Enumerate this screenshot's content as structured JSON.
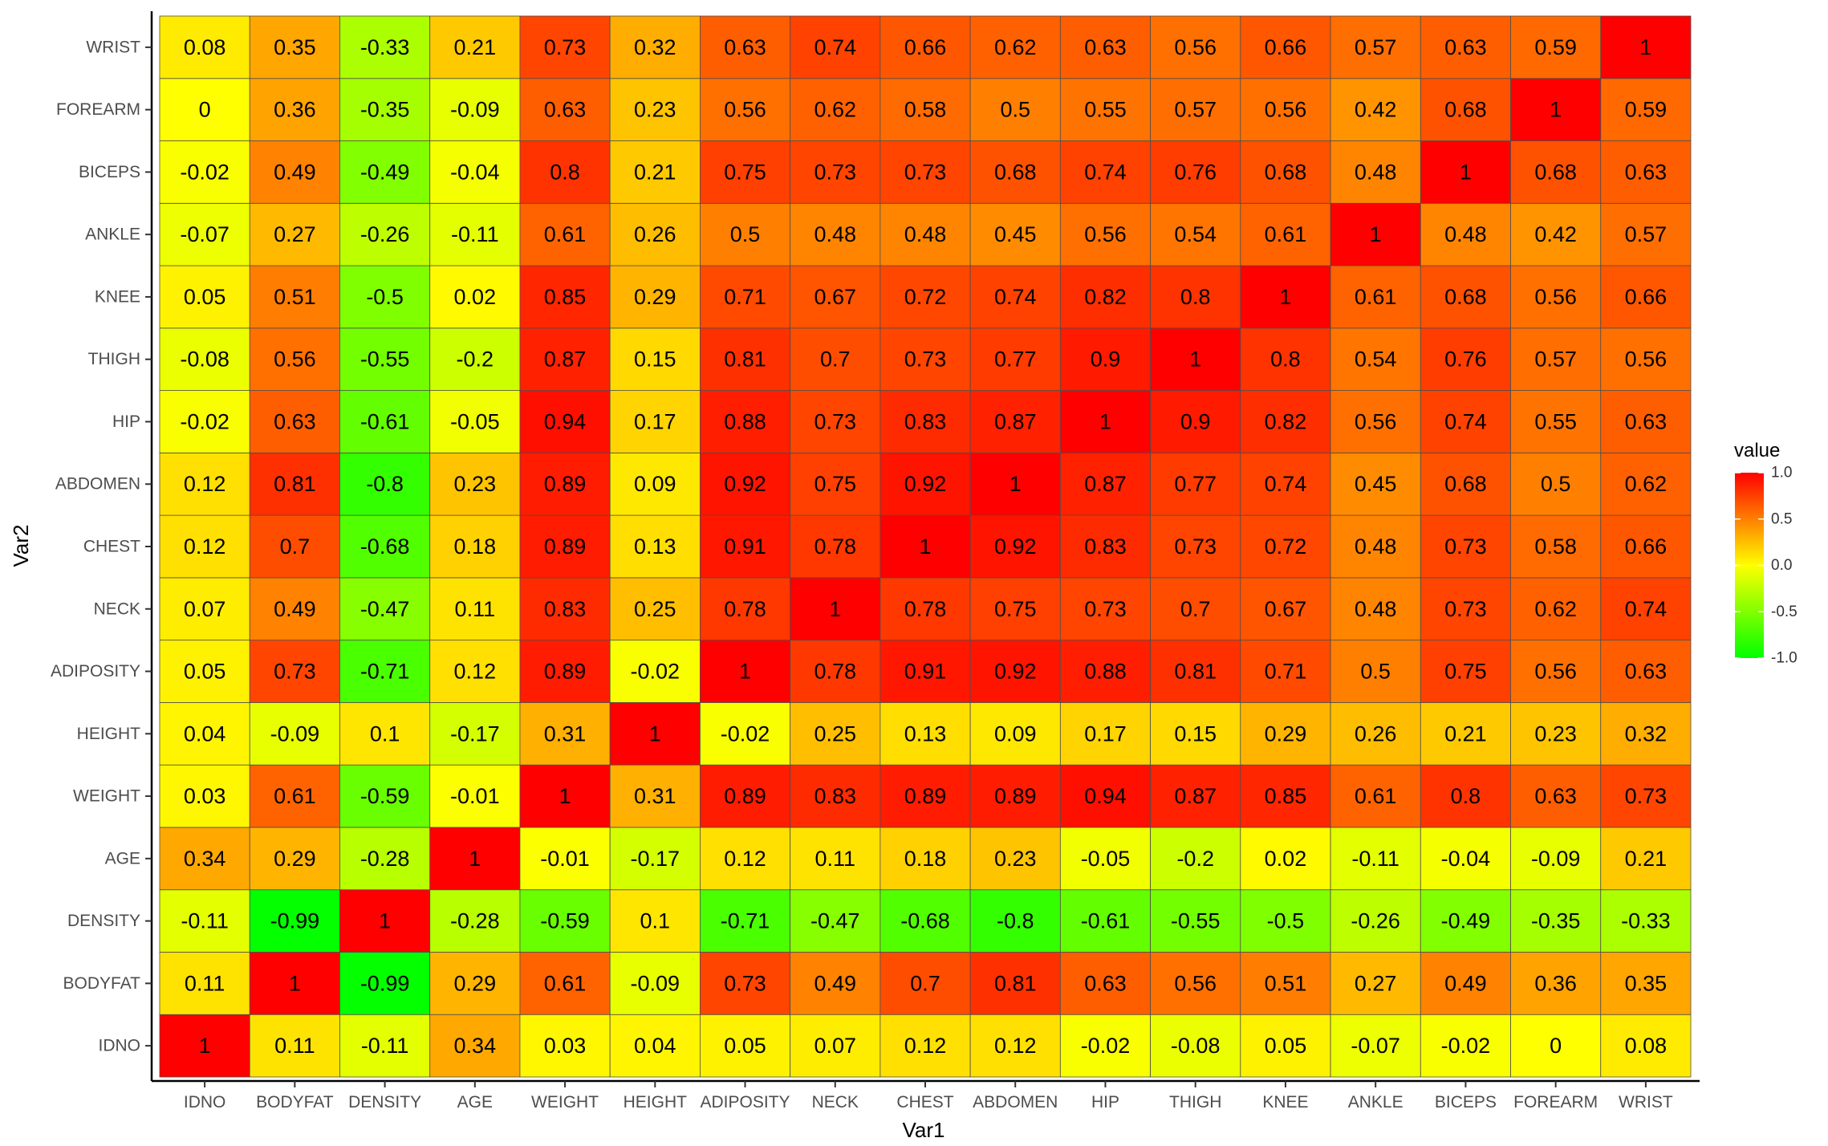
{
  "chart_data": {
    "type": "heatmap",
    "xlabel": "Var1",
    "ylabel": "Var2",
    "x_categories": [
      "IDNO",
      "BODYFAT",
      "DENSITY",
      "AGE",
      "WEIGHT",
      "HEIGHT",
      "ADIPOSITY",
      "NECK",
      "CHEST",
      "ABDOMEN",
      "HIP",
      "THIGH",
      "KNEE",
      "ANKLE",
      "BICEPS",
      "FOREARM",
      "WRIST"
    ],
    "y_categories": [
      "IDNO",
      "BODYFAT",
      "DENSITY",
      "AGE",
      "WEIGHT",
      "HEIGHT",
      "ADIPOSITY",
      "NECK",
      "CHEST",
      "ABDOMEN",
      "HIP",
      "THIGH",
      "KNEE",
      "ANKLE",
      "BICEPS",
      "FOREARM",
      "WRIST"
    ],
    "values": [
      [
        "1",
        "0.11",
        "-0.11",
        "0.34",
        "0.03",
        "0.04",
        "0.05",
        "0.07",
        "0.12",
        "0.12",
        "-0.02",
        "-0.08",
        "0.05",
        "-0.07",
        "-0.02",
        "0",
        "0.08"
      ],
      [
        "0.11",
        "1",
        "-0.99",
        "0.29",
        "0.61",
        "-0.09",
        "0.73",
        "0.49",
        "0.7",
        "0.81",
        "0.63",
        "0.56",
        "0.51",
        "0.27",
        "0.49",
        "0.36",
        "0.35"
      ],
      [
        "-0.11",
        "-0.99",
        "1",
        "-0.28",
        "-0.59",
        "0.1",
        "-0.71",
        "-0.47",
        "-0.68",
        "-0.8",
        "-0.61",
        "-0.55",
        "-0.5",
        "-0.26",
        "-0.49",
        "-0.35",
        "-0.33"
      ],
      [
        "0.34",
        "0.29",
        "-0.28",
        "1",
        "-0.01",
        "-0.17",
        "0.12",
        "0.11",
        "0.18",
        "0.23",
        "-0.05",
        "-0.2",
        "0.02",
        "-0.11",
        "-0.04",
        "-0.09",
        "0.21"
      ],
      [
        "0.03",
        "0.61",
        "-0.59",
        "-0.01",
        "1",
        "0.31",
        "0.89",
        "0.83",
        "0.89",
        "0.89",
        "0.94",
        "0.87",
        "0.85",
        "0.61",
        "0.8",
        "0.63",
        "0.73"
      ],
      [
        "0.04",
        "-0.09",
        "0.1",
        "-0.17",
        "0.31",
        "1",
        "-0.02",
        "0.25",
        "0.13",
        "0.09",
        "0.17",
        "0.15",
        "0.29",
        "0.26",
        "0.21",
        "0.23",
        "0.32"
      ],
      [
        "0.05",
        "0.73",
        "-0.71",
        "0.12",
        "0.89",
        "-0.02",
        "1",
        "0.78",
        "0.91",
        "0.92",
        "0.88",
        "0.81",
        "0.71",
        "0.5",
        "0.75",
        "0.56",
        "0.63"
      ],
      [
        "0.07",
        "0.49",
        "-0.47",
        "0.11",
        "0.83",
        "0.25",
        "0.78",
        "1",
        "0.78",
        "0.75",
        "0.73",
        "0.7",
        "0.67",
        "0.48",
        "0.73",
        "0.62",
        "0.74"
      ],
      [
        "0.12",
        "0.7",
        "-0.68",
        "0.18",
        "0.89",
        "0.13",
        "0.91",
        "0.78",
        "1",
        "0.92",
        "0.83",
        "0.73",
        "0.72",
        "0.48",
        "0.73",
        "0.58",
        "0.66"
      ],
      [
        "0.12",
        "0.81",
        "-0.8",
        "0.23",
        "0.89",
        "0.09",
        "0.92",
        "0.75",
        "0.92",
        "1",
        "0.87",
        "0.77",
        "0.74",
        "0.45",
        "0.68",
        "0.5",
        "0.62"
      ],
      [
        "-0.02",
        "0.63",
        "-0.61",
        "-0.05",
        "0.94",
        "0.17",
        "0.88",
        "0.73",
        "0.83",
        "0.87",
        "1",
        "0.9",
        "0.82",
        "0.56",
        "0.74",
        "0.55",
        "0.63"
      ],
      [
        "-0.08",
        "0.56",
        "-0.55",
        "-0.2",
        "0.87",
        "0.15",
        "0.81",
        "0.7",
        "0.73",
        "0.77",
        "0.9",
        "1",
        "0.8",
        "0.54",
        "0.76",
        "0.57",
        "0.56"
      ],
      [
        "0.05",
        "0.51",
        "-0.5",
        "0.02",
        "0.85",
        "0.29",
        "0.71",
        "0.67",
        "0.72",
        "0.74",
        "0.82",
        "0.8",
        "1",
        "0.61",
        "0.68",
        "0.56",
        "0.66"
      ],
      [
        "-0.07",
        "0.27",
        "-0.26",
        "-0.11",
        "0.61",
        "0.26",
        "0.5",
        "0.48",
        "0.48",
        "0.45",
        "0.56",
        "0.54",
        "0.61",
        "1",
        "0.48",
        "0.42",
        "0.57"
      ],
      [
        "-0.02",
        "0.49",
        "-0.49",
        "-0.04",
        "0.8",
        "0.21",
        "0.75",
        "0.73",
        "0.73",
        "0.68",
        "0.74",
        "0.76",
        "0.68",
        "0.48",
        "1",
        "0.68",
        "0.63"
      ],
      [
        "0",
        "0.36",
        "-0.35",
        "-0.09",
        "0.63",
        "0.23",
        "0.56",
        "0.62",
        "0.58",
        "0.5",
        "0.55",
        "0.57",
        "0.56",
        "0.42",
        "0.68",
        "1",
        "0.59"
      ],
      [
        "0.08",
        "0.35",
        "-0.33",
        "0.21",
        "0.73",
        "0.32",
        "0.63",
        "0.74",
        "0.66",
        "0.62",
        "0.63",
        "0.56",
        "0.66",
        "0.57",
        "0.63",
        "0.59",
        "1"
      ]
    ],
    "color_scale": {
      "low": "#00FF00",
      "mid": "#FFFF00",
      "high": "#FF0000",
      "limits": [
        -1,
        1
      ]
    },
    "legend": {
      "title": "value",
      "placement": "right",
      "ticks": [
        1.0,
        0.5,
        0.0,
        -0.5,
        -1.0
      ],
      "tick_labels": [
        "1.0",
        "0.5",
        "0.0",
        "-0.5",
        "-1.0"
      ]
    },
    "grid": false
  }
}
